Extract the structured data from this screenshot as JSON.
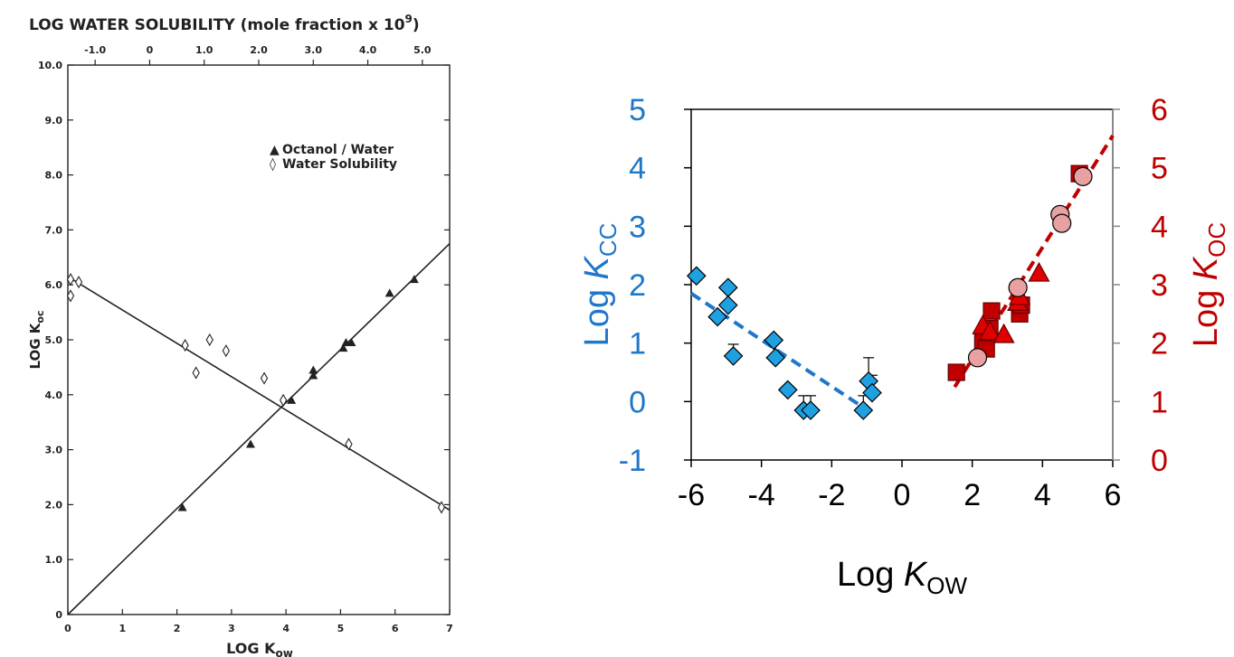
{
  "chart_data": [
    {
      "type": "scatter",
      "title": "LOG WATER SOLUBILITY (mole fraction x 10⁹)",
      "top_axis": {
        "label_main": "LOG WATER SOLUBILITY (mole fraction x 10",
        "label_exp": "9",
        "label_tail": ")",
        "range": [
          -1.5,
          5.5
        ],
        "ticks": [
          "-1.0",
          "0",
          "1.0",
          "2.0",
          "3.0",
          "4.0",
          "5.0"
        ]
      },
      "xlabel_main": "LOG K",
      "xlabel_sub": "ow",
      "ylabel_main": "LOG K",
      "ylabel_sub": "oc",
      "xlim": [
        0,
        7
      ],
      "ylim": [
        0,
        10
      ],
      "x_ticks": [
        "0",
        "1",
        "2",
        "3",
        "4",
        "5",
        "6",
        "7"
      ],
      "y_ticks": [
        "0",
        "1.0",
        "2.0",
        "3.0",
        "4.0",
        "5.0",
        "6.0",
        "7.0",
        "8.0",
        "9.0",
        "10.0"
      ],
      "legend": [
        {
          "symbol": "▲",
          "label": "Octanol / Water"
        },
        {
          "symbol": "◊",
          "label": "Water Solubility"
        }
      ],
      "legend_position": "upper-right",
      "series": [
        {
          "name": "Octanol / Water",
          "marker": "filled-triangle",
          "x": [
            2.1,
            3.35,
            4.1,
            4.5,
            4.5,
            5.05,
            5.1,
            5.2,
            5.9,
            6.35
          ],
          "y": [
            1.95,
            3.1,
            3.9,
            4.35,
            4.45,
            4.85,
            4.95,
            4.95,
            5.85,
            6.1
          ],
          "fit": [
            [
              0,
              0
            ],
            [
              7,
              6.75
            ]
          ]
        },
        {
          "name": "Water Solubility",
          "marker": "open-diamond",
          "x": [
            0.05,
            0.05,
            0.2,
            2.15,
            2.35,
            2.6,
            2.9,
            3.6,
            3.95,
            5.15,
            6.85
          ],
          "y": [
            6.1,
            5.8,
            6.05,
            4.9,
            4.4,
            5.0,
            4.8,
            4.3,
            3.9,
            3.1,
            1.95
          ],
          "fit": [
            [
              0,
              6.15
            ],
            [
              7,
              1.9
            ]
          ]
        }
      ]
    },
    {
      "type": "scatter",
      "xlabel_main": "Log ",
      "xlabel_italic": "K",
      "xlabel_sub": "OW",
      "ylabel_left_main": "Log ",
      "ylabel_left_italic": "K",
      "ylabel_left_sub": "CC",
      "ylabel_right_main": "Log ",
      "ylabel_right_italic": "K",
      "ylabel_right_sub": "OC",
      "xlim": [
        -6,
        6
      ],
      "ylim_left": [
        -1,
        5
      ],
      "ylim_right": [
        0,
        6
      ],
      "x_ticks": [
        "-6",
        "-4",
        "-2",
        "0",
        "2",
        "4",
        "6"
      ],
      "y_left_ticks": [
        "-1",
        "0",
        "1",
        "2",
        "3",
        "4",
        "5"
      ],
      "y_right_ticks": [
        "0",
        "1",
        "2",
        "3",
        "4",
        "5",
        "6"
      ],
      "colors": {
        "left": "#1f77c9",
        "right": "#c00000",
        "diamond": "#1fa0e0",
        "square": "#c00000",
        "triangle": "#e00000",
        "circle": "#e8a0a0"
      },
      "series": [
        {
          "marker": "diamond",
          "axis": "left",
          "x": [
            -5.85,
            -5.25,
            -4.95,
            -4.95,
            -4.8,
            -3.65,
            -3.6,
            -3.25,
            -2.8,
            -2.6,
            -1.1,
            -0.95,
            -0.85
          ],
          "y": [
            2.15,
            1.45,
            1.95,
            1.65,
            0.78,
            1.05,
            0.75,
            0.2,
            -0.15,
            -0.15,
            -0.15,
            0.35,
            0.15
          ],
          "error_up": [
            0,
            0,
            0,
            0,
            0.2,
            0,
            0,
            0,
            0.25,
            0.25,
            0.25,
            0.4,
            0.3
          ],
          "fit": [
            [
              -6,
              1.85
            ],
            [
              -1.1,
              -0.1
            ]
          ]
        },
        {
          "marker": "square",
          "axis": "right",
          "x": [
            1.55,
            2.3,
            2.4,
            2.5,
            2.55,
            3.35,
            3.4,
            5.05
          ],
          "y": [
            1.5,
            2.05,
            1.9,
            2.25,
            2.55,
            2.5,
            2.65,
            4.9
          ]
        },
        {
          "marker": "triangle",
          "axis": "right",
          "x": [
            2.3,
            2.5,
            2.9,
            3.3,
            3.35,
            3.9
          ],
          "y": [
            2.3,
            2.2,
            2.15,
            2.7,
            2.8,
            3.2
          ]
        },
        {
          "marker": "circle",
          "axis": "right",
          "x": [
            2.15,
            3.3,
            4.5,
            4.55,
            5.15
          ],
          "y": [
            1.75,
            2.95,
            4.2,
            4.05,
            4.85
          ]
        }
      ],
      "fit_right": [
        [
          1.5,
          1.25
        ],
        [
          6,
          5.55
        ]
      ]
    }
  ]
}
